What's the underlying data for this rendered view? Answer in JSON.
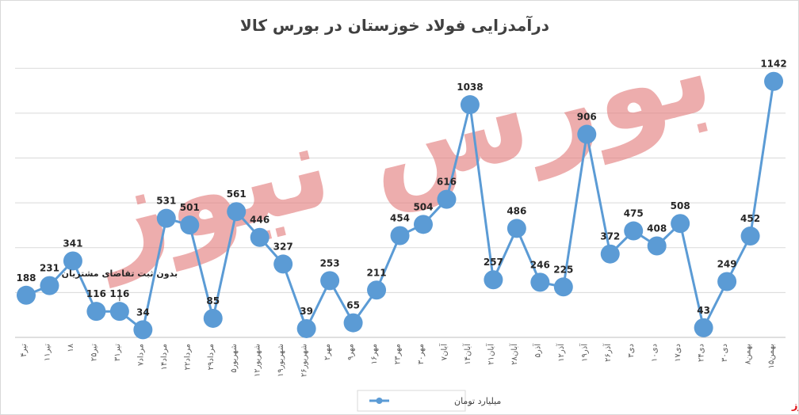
{
  "chart_data": {
    "type": "line",
    "title": "درآمدزایی فولاد خوزستان در بورس کالا",
    "categories": [
      "۴تیر",
      "۱۱تیر",
      "۱۸",
      "۲۵تیر",
      "۳۱تیر",
      "۷مرداد",
      "۱۴مرداد",
      "۲۲مرداد",
      "۲۹مرداد",
      "۵شهریور",
      "۱۲شهریور",
      "۱۹شهریور",
      "۲۶شهریور",
      "۲مهر",
      "۹مهر",
      "۱۶مهر",
      "۲۳مهر",
      "۳۰مهر",
      "۷آبان",
      "۱۴آبان",
      "۲۱آبان",
      "۲۸آبان",
      "۵آذر",
      "۱۲آذر",
      "۱۹آذر",
      "۲۶آذر",
      "۳دی",
      "۱۰دی",
      "۱۷دی",
      "۲۴دی",
      "۳۰دی",
      "۸بهمن",
      "۱۵بهمن"
    ],
    "series": [
      {
        "name": "میلیارد تومان",
        "color": "#5b9bd5",
        "values": [
          188,
          231,
          341,
          116,
          116,
          34,
          531,
          501,
          85,
          561,
          446,
          327,
          39,
          253,
          65,
          211,
          454,
          504,
          616,
          1038,
          257,
          486,
          246,
          225,
          906,
          372,
          475,
          408,
          508,
          43,
          249,
          452,
          1142
        ]
      }
    ],
    "ylim": [
      0,
      1300
    ],
    "grid": true,
    "legend": "bottom-center",
    "annotation": "بدون ثبت تقاضای مشتریان"
  },
  "brand": "بورس نیوز",
  "watermark": "بورس نیوز"
}
